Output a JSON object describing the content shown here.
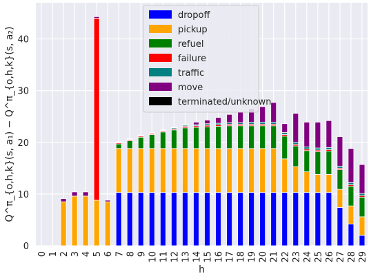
{
  "chart_data": {
    "type": "bar",
    "stacked": true,
    "title": "",
    "xlabel": "h",
    "ylabel": "Q^π_{o,h,k}(s, a₁) − Q^π_{o,h,k}(s, a₂)",
    "ylim": [
      0,
      47
    ],
    "yticks": [
      0,
      10,
      20,
      30,
      40
    ],
    "grid": true,
    "background": "#eaeaf2",
    "legend_position": "top-center",
    "categories": [
      "0",
      "1",
      "2",
      "3",
      "4",
      "5",
      "6",
      "7",
      "8",
      "9",
      "10",
      "11",
      "12",
      "13",
      "14",
      "15",
      "16",
      "17",
      "18",
      "19",
      "20",
      "21",
      "22",
      "23",
      "24",
      "25",
      "26",
      "27",
      "28",
      "29"
    ],
    "series": [
      {
        "name": "dropoff",
        "color": "#0000ff",
        "values": [
          0,
          0,
          0,
          0,
          0,
          0,
          0,
          10.3,
          10.3,
          10.3,
          10.3,
          10.3,
          10.3,
          10.3,
          10.3,
          10.3,
          10.3,
          10.3,
          10.3,
          10.3,
          10.3,
          10.3,
          10.3,
          10.3,
          10.3,
          10.3,
          10.3,
          7.4,
          4.2,
          2.0
        ]
      },
      {
        "name": "pickup",
        "color": "#ffa500",
        "values": [
          0,
          0,
          8.5,
          9.6,
          9.6,
          8.8,
          8.5,
          8.5,
          8.5,
          8.5,
          8.5,
          8.5,
          8.5,
          8.5,
          8.5,
          8.5,
          8.5,
          8.5,
          8.5,
          8.5,
          8.5,
          8.5,
          6.5,
          5.0,
          4.0,
          3.5,
          3.5,
          3.5,
          3.5,
          3.6
        ]
      },
      {
        "name": "refuel",
        "color": "#008000",
        "values": [
          0,
          0,
          0,
          0,
          0,
          0,
          0,
          0.9,
          1.5,
          2.2,
          2.7,
          3.2,
          3.6,
          4.0,
          4.1,
          4.2,
          4.3,
          4.4,
          4.4,
          4.4,
          4.4,
          4.4,
          4.4,
          4.0,
          4.1,
          4.4,
          4.5,
          3.8,
          3.8,
          3.8
        ]
      },
      {
        "name": "failure",
        "color": "#ff0000",
        "values": [
          0,
          0,
          0,
          0,
          0,
          35.2,
          0,
          0.2,
          0.2,
          0.2,
          0.2,
          0.2,
          0.2,
          0.3,
          0.3,
          0.3,
          0.3,
          0.3,
          0.3,
          0.3,
          0.3,
          0.3,
          0.3,
          0.3,
          0.3,
          0.3,
          0.3,
          0.3,
          0.3,
          0.3
        ]
      },
      {
        "name": "traffic",
        "color": "#008080",
        "values": [
          0,
          0,
          0,
          0,
          0,
          0,
          0,
          0.1,
          0.1,
          0.1,
          0.1,
          0.1,
          0.2,
          0.2,
          0.2,
          0.3,
          0.3,
          0.3,
          0.3,
          0.4,
          0.4,
          0.4,
          0.4,
          0.4,
          0.4,
          0.4,
          0.4,
          0.4,
          0.4,
          0.4
        ]
      },
      {
        "name": "move",
        "color": "#800080",
        "values": [
          0,
          0,
          0.6,
          0.8,
          0.8,
          0.3,
          0.3,
          0.1,
          0.1,
          0.1,
          0.1,
          0.1,
          0.1,
          0.1,
          0.5,
          0.7,
          1.1,
          1.6,
          2.1,
          2.6,
          3.0,
          3.8,
          1.7,
          5.6,
          4.8,
          5.0,
          5.2,
          5.7,
          6.6,
          5.6
        ]
      },
      {
        "name": "terminated/unknown",
        "color": "#000000",
        "values": [
          0,
          0,
          0,
          0,
          0,
          0,
          0,
          0,
          0,
          0,
          0,
          0,
          0,
          0,
          0,
          0,
          0,
          0,
          0,
          0,
          0,
          0,
          0,
          0,
          0,
          0,
          0,
          0,
          0,
          0
        ]
      }
    ]
  }
}
